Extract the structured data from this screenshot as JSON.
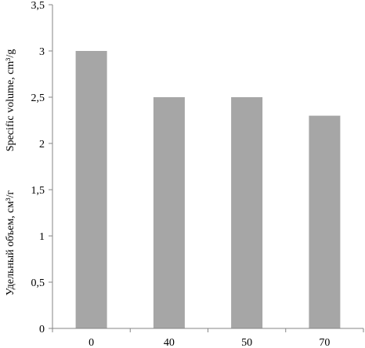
{
  "chart_data": {
    "type": "bar",
    "categories": [
      "0",
      "40",
      "50",
      "70"
    ],
    "values": [
      3,
      2.5,
      2.5,
      2.3
    ],
    "ylim": [
      0,
      3.5
    ],
    "yticks": [
      "0",
      "0,5",
      "1",
      "1,5",
      "2",
      "2,5",
      "3",
      "3,5"
    ],
    "ylabel_ru": "Удельный объем, см³/г",
    "ylabel_en": "Specific volume, cm³/g",
    "xlabel": "",
    "title": "",
    "grid": false,
    "legend": "none",
    "bar_color": "#a6a6a6",
    "axis_color": "#868686"
  }
}
